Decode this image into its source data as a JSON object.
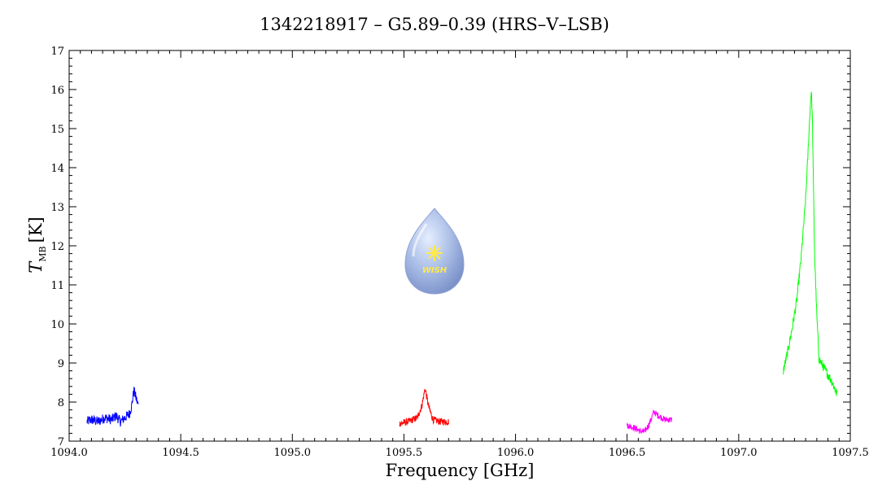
{
  "chart_data": {
    "type": "line",
    "title": "1342218917 – G5.89–0.39 (HRS–V–LSB)",
    "xlabel": "Frequency [GHz]",
    "ylabel_symbol": "T",
    "ylabel_subscript": "MB",
    "ylabel_unit": "[K]",
    "xlim": [
      1094.0,
      1097.5
    ],
    "ylim": [
      7,
      17
    ],
    "xticks": [
      "1094.0",
      "1094.5",
      "1095.0",
      "1095.5",
      "1096.0",
      "1096.5",
      "1097.0",
      "1097.5"
    ],
    "yticks": [
      "7",
      "8",
      "9",
      "10",
      "11",
      "12",
      "13",
      "14",
      "15",
      "16",
      "17"
    ],
    "grid": false,
    "logo_text": "WISH",
    "series": [
      {
        "color": "#0000ff",
        "x": [
          1094.08,
          1094.1,
          1094.13,
          1094.16,
          1094.19,
          1094.21,
          1094.23,
          1094.25,
          1094.27,
          1094.28,
          1094.29,
          1094.3,
          1094.31
        ],
        "y": [
          7.5,
          7.55,
          7.5,
          7.6,
          7.55,
          7.65,
          7.5,
          7.6,
          7.7,
          7.9,
          8.3,
          8.1,
          7.9
        ],
        "noise": 0.13
      },
      {
        "color": "#ff0000",
        "x": [
          1095.48,
          1095.52,
          1095.56,
          1095.58,
          1095.595,
          1095.61,
          1095.63,
          1095.66,
          1095.7
        ],
        "y": [
          7.45,
          7.5,
          7.6,
          7.9,
          8.35,
          7.9,
          7.55,
          7.5,
          7.5
        ],
        "noise": 0.09
      },
      {
        "color": "#ff00ff",
        "x": [
          1096.5,
          1096.53,
          1096.56,
          1096.58,
          1096.6,
          1096.62,
          1096.64,
          1096.67,
          1096.7
        ],
        "y": [
          7.4,
          7.35,
          7.25,
          7.25,
          7.45,
          7.75,
          7.65,
          7.55,
          7.55
        ],
        "noise": 0.08
      },
      {
        "color": "#00ff00",
        "x": [
          1097.2,
          1097.22,
          1097.24,
          1097.26,
          1097.28,
          1097.3,
          1097.31,
          1097.32,
          1097.325,
          1097.33,
          1097.335,
          1097.34,
          1097.35,
          1097.36,
          1097.38,
          1097.4,
          1097.42,
          1097.44
        ],
        "y": [
          8.8,
          9.3,
          9.9,
          10.6,
          11.7,
          13.2,
          14.3,
          15.5,
          16.0,
          15.3,
          13.5,
          11.8,
          10.2,
          9.1,
          8.9,
          8.7,
          8.5,
          8.2
        ],
        "noise": 0.12
      }
    ]
  }
}
